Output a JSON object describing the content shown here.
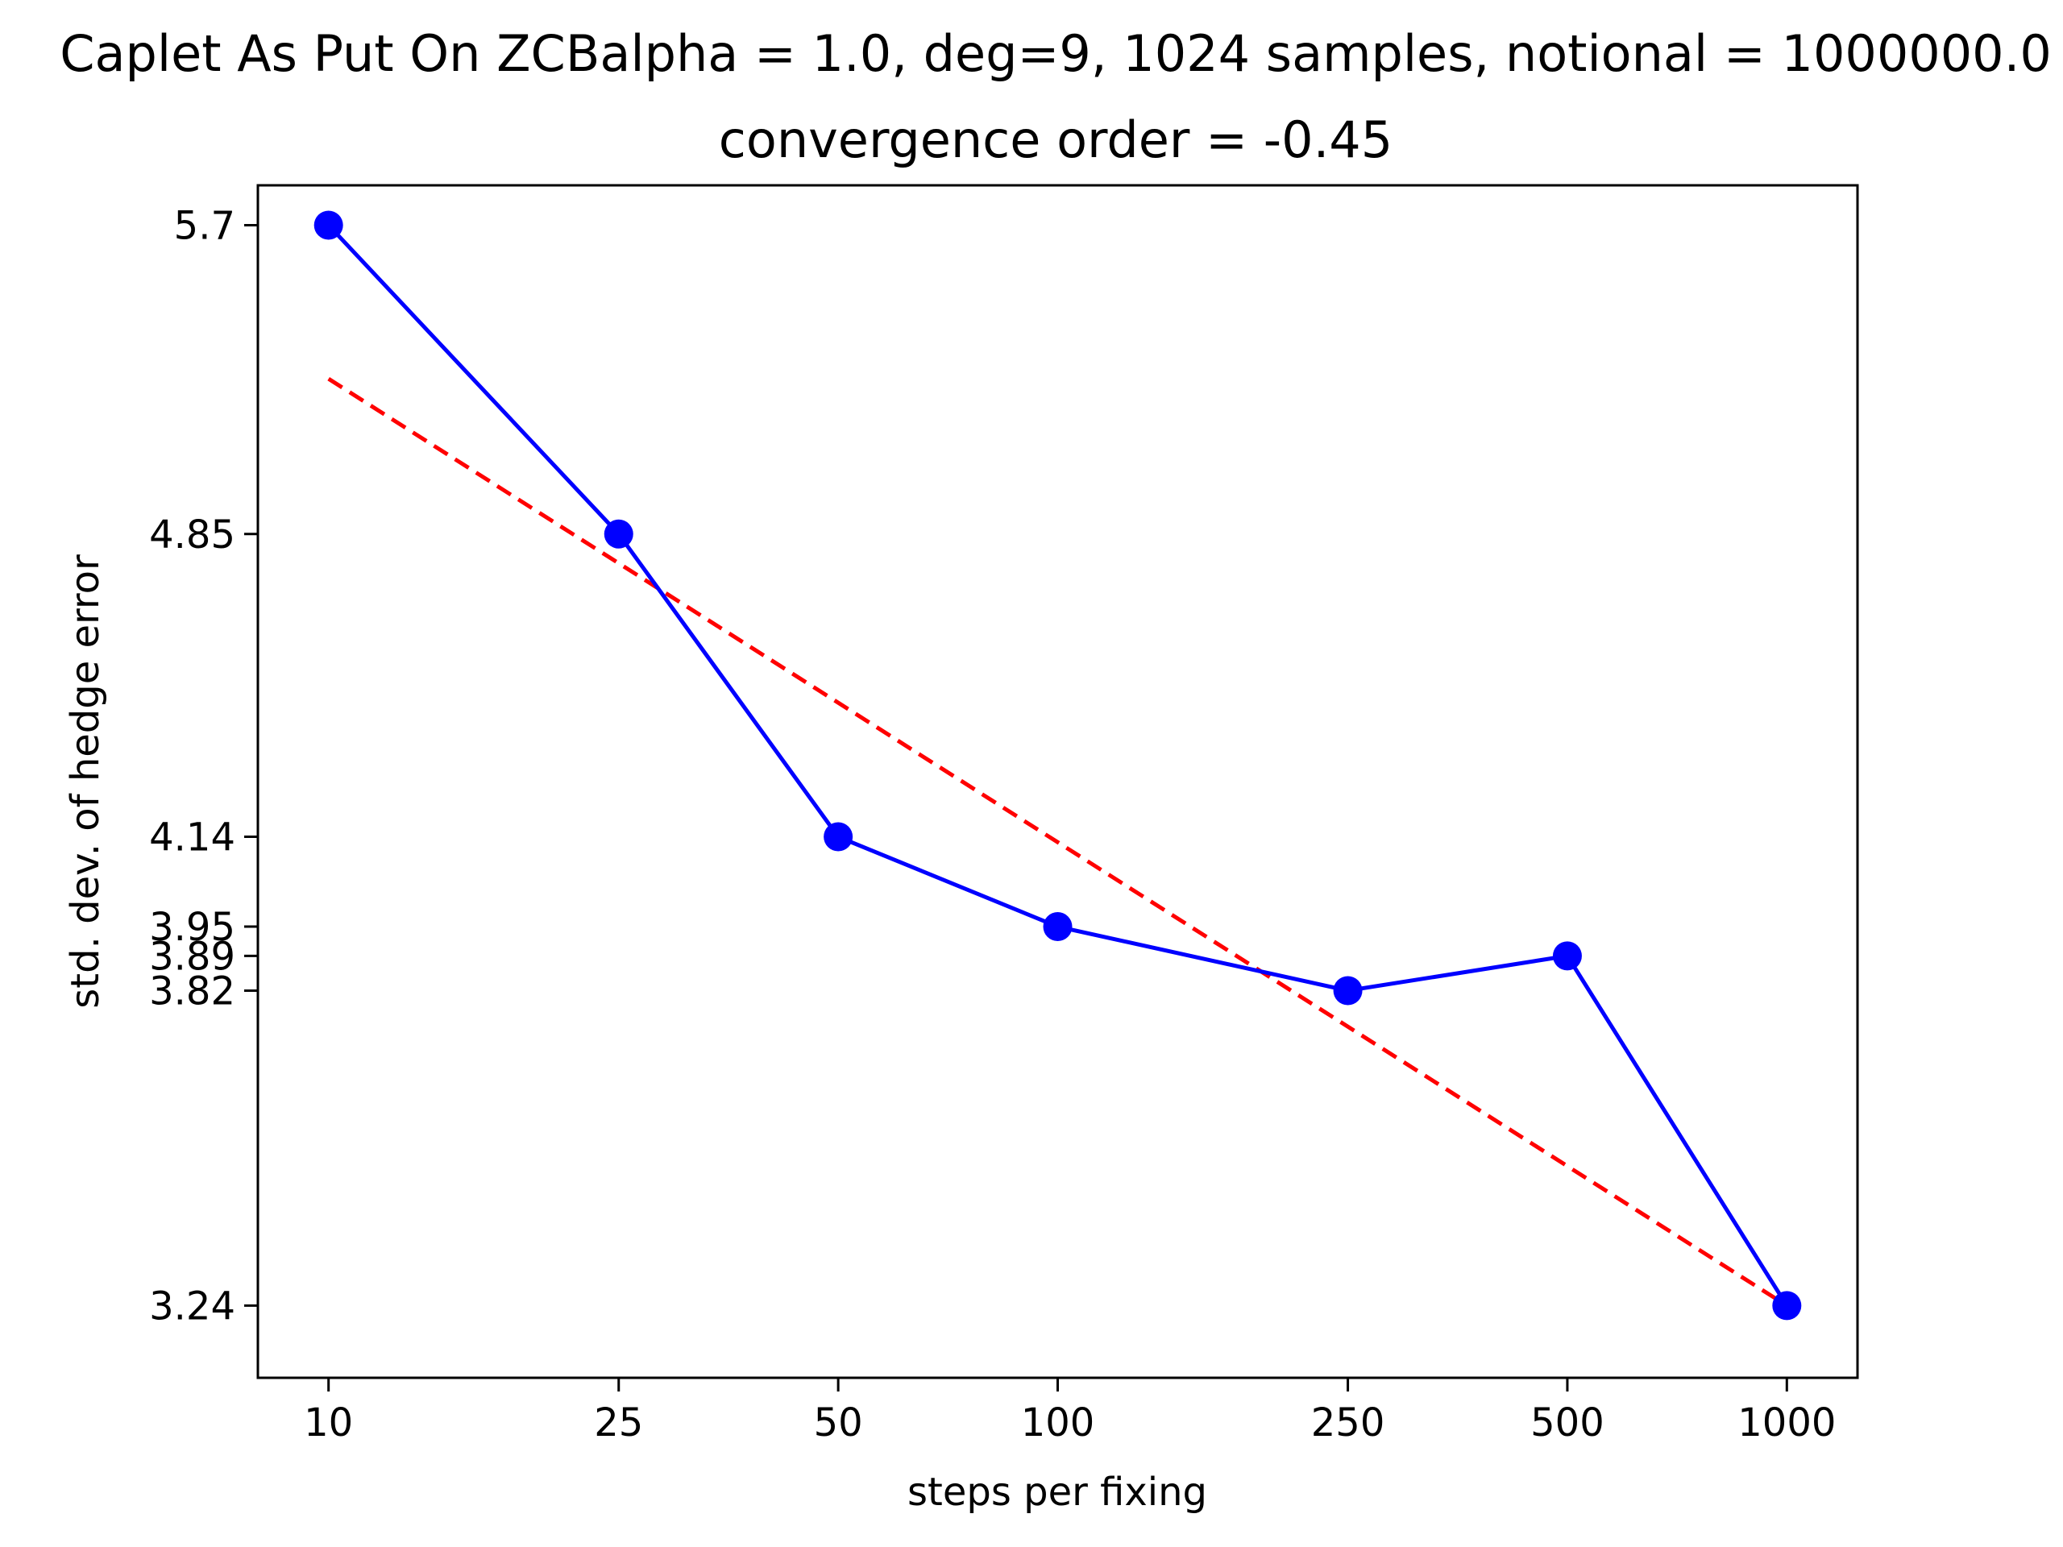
{
  "chart_data": {
    "type": "line",
    "title_line1": "Caplet As Put On ZCBalpha = 1.0, deg=9, 1024 samples, notional = 1000000.0",
    "title_line2": "convergence order = -0.45",
    "xlabel": "steps per fixing",
    "ylabel": "std. dev. of hedge error",
    "x_scale": "log",
    "y_scale": "log",
    "x_ticks": [
      10,
      25,
      50,
      100,
      250,
      500,
      1000
    ],
    "x_tick_labels": [
      "10",
      "25",
      "50",
      "100",
      "250",
      "500",
      "1000"
    ],
    "y_ticks": [
      3.24,
      3.82,
      3.89,
      3.95,
      4.14,
      4.85,
      5.7
    ],
    "y_tick_labels": [
      "3.24",
      "3.82",
      "3.89",
      "3.95",
      "4.14",
      "4.85",
      "5.7"
    ],
    "xlim": [
      8.0,
      1250
    ],
    "ylim": [
      3.12,
      5.82
    ],
    "grid": false,
    "series": [
      {
        "style": "solid-markers",
        "color": "#0000ff",
        "x": [
          10,
          25,
          50,
          100,
          250,
          500,
          1000
        ],
        "y": [
          5.7,
          4.85,
          4.14,
          3.95,
          3.82,
          3.89,
          3.24
        ]
      },
      {
        "style": "dashed",
        "color": "#ff0000",
        "x": [
          10,
          1000
        ],
        "y": [
          5.26,
          3.24
        ]
      }
    ]
  }
}
